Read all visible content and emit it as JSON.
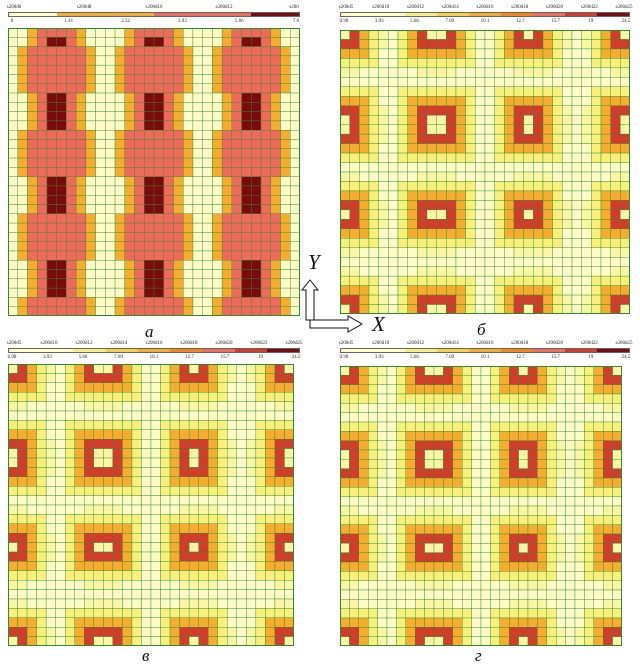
{
  "panels": [
    {
      "id": "a",
      "caption": "а",
      "legend": {
        "names": [
          "s200d6",
          "s200d8",
          "s200d10",
          "s200d12",
          "s200"
        ],
        "values": [
          "0",
          "1.41",
          "2.52",
          "3.93",
          "5.66",
          "7.6"
        ],
        "colors": [
          "#fffcc8",
          "#f6ac2e",
          "#f6ac2e",
          "#f06a5c",
          "#f06a5c",
          "#7a0a0c"
        ]
      },
      "grid": {
        "cols": 30,
        "rows": 31
      }
    },
    {
      "id": "b",
      "caption": "б",
      "legend": {
        "names": [
          "s200d5",
          "s200d10",
          "s200d12",
          "s200d14",
          "s200d16",
          "s200d18",
          "s200d20",
          "s200d22",
          "s200d25"
        ],
        "values": [
          "0.98",
          "3.93",
          "5.66",
          "7.69",
          "10.1",
          "12.7",
          "15.7",
          "19",
          "24.5"
        ],
        "colors": [
          "#fffcc8",
          "#fffcc8",
          "#f8f07a",
          "#f6cf45",
          "#f6ac2e",
          "#f5871a",
          "#f06a5c",
          "#d43b2b",
          "#7a0a0c"
        ]
      },
      "grid": {
        "cols": 30,
        "rows": 30
      }
    },
    {
      "id": "v",
      "caption": "в",
      "legend": {
        "names": [
          "s200d5",
          "s200d10",
          "s200d12",
          "s200d14",
          "s200d16",
          "s200d18",
          "s200d20",
          "s200d22",
          "s200d25"
        ],
        "values": [
          "0.98",
          "3.93",
          "5.66",
          "7.69",
          "10.1",
          "12.7",
          "15.7",
          "19",
          "24.5"
        ],
        "colors": [
          "#fffcc8",
          "#fffcc8",
          "#f8f07a",
          "#f6cf45",
          "#f6ac2e",
          "#f5871a",
          "#f06a5c",
          "#d43b2b",
          "#7a0a0c"
        ]
      },
      "grid": {
        "cols": 30,
        "rows": 30
      }
    },
    {
      "id": "g",
      "caption": "г",
      "legend": {
        "names": [
          "s200d5",
          "s200d10",
          "s200d12",
          "s200d14",
          "s200d16",
          "s200d18",
          "s200d20",
          "s200d22",
          "s200d25"
        ],
        "values": [
          "0.98",
          "3.93",
          "5.66",
          "7.69",
          "10.1",
          "12.7",
          "15.7",
          "19",
          "24.5"
        ],
        "colors": [
          "#fffcc8",
          "#fffcc8",
          "#f8f07a",
          "#f6cf45",
          "#f6ac2e",
          "#f5871a",
          "#f06a5c",
          "#d43b2b",
          "#7a0a0c"
        ]
      },
      "grid": {
        "cols": 30,
        "rows": 30
      }
    }
  ],
  "axes": {
    "y_label": "Y",
    "x_label": "X"
  },
  "colors": {
    "base": "#fffcc8",
    "light": "#f8f07a",
    "orange": "#f6ac2e",
    "salmon": "#f06a5c",
    "red": "#d43b2b",
    "dark": "#7a0a0c",
    "grid_line": "#2e8b2e"
  }
}
